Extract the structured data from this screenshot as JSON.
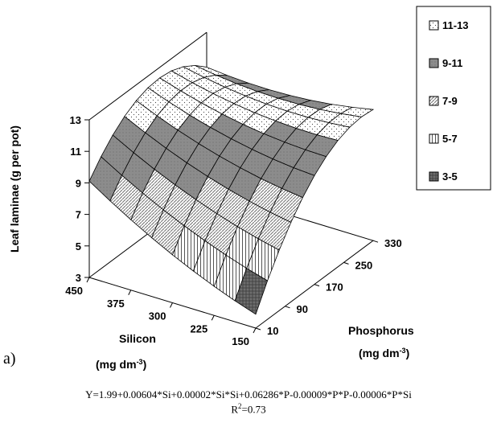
{
  "chart_data": {
    "type": "surface",
    "panel_label": "a)",
    "z_axis": {
      "label": "Leaf laminae (g per pot)",
      "ticks": [
        3,
        5,
        7,
        9,
        11,
        13
      ],
      "range": [
        3,
        13
      ]
    },
    "x_axis": {
      "label": "Silicon",
      "unit": "(mg dm",
      "unit_sup": "-3",
      "unit_close": ")",
      "ticks": [
        450,
        375,
        300,
        225,
        150
      ],
      "range": [
        150,
        450
      ]
    },
    "y_axis": {
      "label": "Phosphorus",
      "unit": "(mg dm",
      "unit_sup": "-3",
      "unit_close": ")",
      "ticks": [
        10,
        90,
        170,
        250,
        330
      ],
      "range": [
        10,
        330
      ]
    },
    "legend": {
      "position": "right",
      "entries": [
        {
          "label": "11-13",
          "range": [
            11,
            13
          ],
          "color": "#f2f2f2"
        },
        {
          "label": "9-11",
          "range": [
            9,
            11
          ],
          "color": "#8c8c8c"
        },
        {
          "label": "7-9",
          "range": [
            7,
            9
          ],
          "color": "#cfcfcf"
        },
        {
          "label": "5-7",
          "range": [
            5,
            7
          ],
          "color": "#e6e6e6"
        },
        {
          "label": "3-5",
          "range": [
            3,
            5
          ],
          "color": "#6e6e6e"
        }
      ]
    },
    "surface_points": [
      {
        "silicon": 450,
        "phosphorus": 10,
        "leaf": 9.0
      },
      {
        "silicon": 150,
        "phosphorus": 10,
        "leaf": 3.2
      },
      {
        "silicon": 150,
        "phosphorus": 330,
        "leaf": 11.5
      },
      {
        "silicon": 450,
        "phosphorus": 330,
        "leaf": 12.8
      },
      {
        "silicon": 450,
        "phosphorus": 170,
        "leaf": 12.4
      }
    ],
    "equation": "Y=1.99+0.00604*Si+0.00002*Si*Si+0.06286*P-0.00009*P*P-0.00006*P*Si",
    "r2_prefix": "R",
    "r2_sup": "2",
    "r2_value": "=0.73"
  }
}
